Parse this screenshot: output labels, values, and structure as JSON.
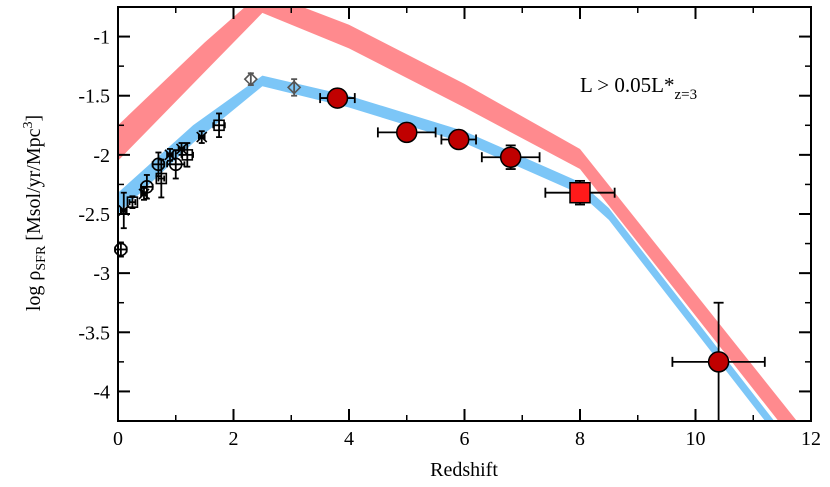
{
  "chart_data": {
    "type": "scatter",
    "xlabel": "Redshift",
    "ylabel": {
      "base": "log ρ",
      "sub": "SFR",
      "unit": " [Msol/yr/Mpc",
      "sup": "3",
      "close": "]"
    },
    "annotation": {
      "text": "L > 0.05L*",
      "sub": "z=3"
    },
    "xlim": [
      0,
      12
    ],
    "ylim": [
      -4.25,
      -0.75
    ],
    "xticks": [
      0,
      2,
      4,
      6,
      8,
      10,
      12
    ],
    "yticks": [
      -1,
      -1.5,
      -2,
      -2.5,
      -3,
      -3.5,
      -4
    ],
    "colors": {
      "blue_band": "#7cc6f7",
      "red_band": "#ff8a8e",
      "filled_point": "#c00000",
      "square_point": "#ff1a1a",
      "hollow_point": "#000000",
      "diamond_point": "#555555"
    },
    "series": [
      {
        "name": "blue band",
        "kind": "band",
        "x": [
          0,
          1.3,
          2.5,
          4,
          6,
          8,
          8.5,
          12
        ],
        "y_low": [
          -2.5,
          -1.9,
          -1.42,
          -1.6,
          -1.9,
          -2.33,
          -2.55,
          -4.75
        ],
        "y_high": [
          -2.32,
          -1.75,
          -1.33,
          -1.5,
          -1.8,
          -2.23,
          -2.45,
          -4.65
        ]
      },
      {
        "name": "red band",
        "kind": "band",
        "x": [
          0,
          1.5,
          2.5,
          4,
          6,
          8,
          12
        ],
        "y_low": [
          -2.05,
          -1.3,
          -0.8,
          -1.1,
          -1.6,
          -2.12,
          -4.6
        ],
        "y_high": [
          -1.75,
          -1.05,
          -0.62,
          -0.9,
          -1.4,
          -1.95,
          -4.4
        ]
      },
      {
        "name": "hollow circles",
        "marker": "circle-open",
        "points": [
          {
            "x": 0.05,
            "y": -2.8,
            "xerr": 0.1,
            "yerr": 0.06
          },
          {
            "x": 0.5,
            "y": -2.27,
            "xerr": 0.1,
            "yerr": 0.1
          },
          {
            "x": 0.7,
            "y": -2.08,
            "xerr": 0.1,
            "yerr": 0.1
          },
          {
            "x": 1.0,
            "y": -2.08,
            "xerr": 0.15,
            "yerr": 0.12
          }
        ]
      },
      {
        "name": "hollow squares",
        "marker": "square-open",
        "points": [
          {
            "x": 0.25,
            "y": -2.4,
            "xerr": 0.05,
            "yerr": 0.05
          },
          {
            "x": 0.75,
            "y": -2.2,
            "xerr": 0.05,
            "yerr": 0.16
          },
          {
            "x": 1.2,
            "y": -2.0,
            "xerr": 0.1,
            "yerr": 0.1
          },
          {
            "x": 1.75,
            "y": -1.75,
            "xerr": 0.1,
            "yerr": 0.1
          }
        ]
      },
      {
        "name": "crosses",
        "marker": "x",
        "points": [
          {
            "x": 0.1,
            "y": -2.47,
            "xerr": 0.05,
            "yerr": 0.15
          },
          {
            "x": 0.45,
            "y": -2.33,
            "xerr": 0.05,
            "yerr": 0.05
          },
          {
            "x": 0.9,
            "y": -2.0,
            "xerr": 0.05,
            "yerr": 0.05
          },
          {
            "x": 1.1,
            "y": -1.95,
            "xerr": 0.05,
            "yerr": 0.05
          },
          {
            "x": 1.45,
            "y": -1.85,
            "xerr": 0.05,
            "yerr": 0.05
          }
        ]
      },
      {
        "name": "diamonds",
        "marker": "diamond-open",
        "points": [
          {
            "x": 2.3,
            "y": -1.36,
            "xerr": 0.0,
            "yerr": 0.05
          },
          {
            "x": 3.05,
            "y": -1.43,
            "xerr": 0.0,
            "yerr": 0.07
          }
        ]
      },
      {
        "name": "filled circles",
        "marker": "circle-filled",
        "points": [
          {
            "x": 3.8,
            "y": -1.52,
            "xerr": 0.3,
            "yerr": 0.05
          },
          {
            "x": 5.0,
            "y": -1.81,
            "xerr": 0.5,
            "yerr": 0.05
          },
          {
            "x": 5.9,
            "y": -1.87,
            "xerr": 0.3,
            "yerr": 0.05
          },
          {
            "x": 6.8,
            "y": -2.02,
            "xerr": 0.5,
            "yerr": 0.1
          },
          {
            "x": 10.4,
            "y": -3.75,
            "xerr": 0.8,
            "yerr": 0.5
          }
        ]
      },
      {
        "name": "filled square",
        "marker": "square-filled",
        "points": [
          {
            "x": 8.0,
            "y": -2.32,
            "xerr": 0.6,
            "yerr": 0.1
          }
        ]
      }
    ]
  }
}
